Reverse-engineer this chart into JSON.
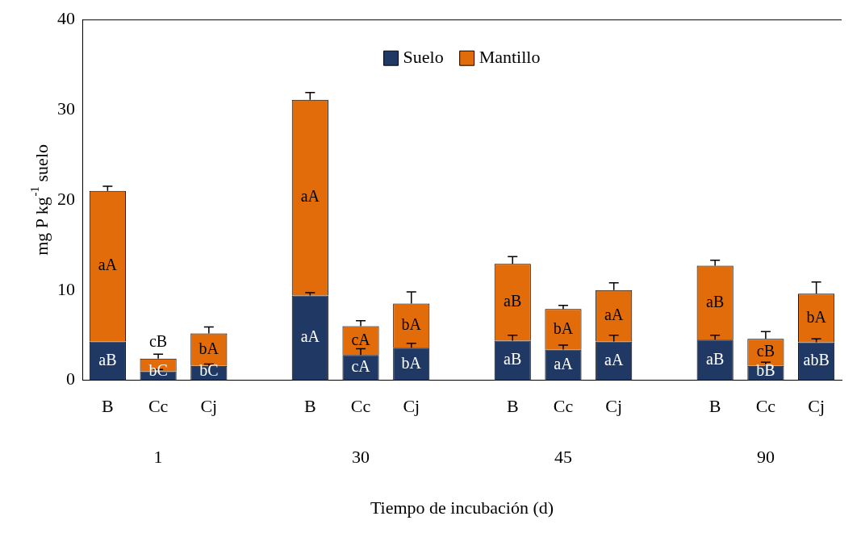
{
  "chart_data": {
    "type": "bar",
    "stacked": true,
    "xlabel": "Tiempo de incubación (d)",
    "ylabel": "mg P kg$^{-1}$ suelo",
    "categories": [
      "B",
      "Cc",
      "Cj",
      null,
      "B",
      "Cc",
      "Cj",
      null,
      "B",
      "Cc",
      "Cj",
      null,
      "B",
      "Cc",
      "Cj"
    ],
    "annotations": [
      "1",
      "30",
      "45",
      "90"
    ],
    "ylim": [
      0,
      40
    ],
    "yticks": [
      0,
      10,
      20,
      30,
      40
    ],
    "grid": false,
    "legend": "top",
    "series": [
      {
        "name": "Suelo",
        "color": "#203864",
        "values": [
          4.3,
          1.0,
          1.6,
          null,
          9.4,
          2.8,
          3.6,
          null,
          4.4,
          3.4,
          4.3,
          null,
          4.5,
          1.6,
          4.2
        ],
        "errors": [
          null,
          [
            1.0,
            1.2
          ],
          [
            1.6,
            1.8
          ],
          null,
          [
            9.4,
            9.7
          ],
          [
            2.8,
            3.5
          ],
          [
            3.6,
            4.1
          ],
          null,
          [
            4.4,
            5.0
          ],
          [
            3.4,
            3.9
          ],
          [
            4.3,
            5.0
          ],
          null,
          [
            4.5,
            5.0
          ],
          [
            1.6,
            2.0
          ],
          [
            4.2,
            4.6
          ]
        ],
        "value_labels": [
          "aB",
          "bC",
          "bC",
          null,
          "aA",
          "cA",
          "bA",
          null,
          "aB",
          "aA",
          "aA",
          null,
          "aB",
          "bB",
          "abB"
        ]
      },
      {
        "name": "Mantillo",
        "color": "#e36c0a",
        "values": [
          16.7,
          1.4,
          3.6,
          null,
          21.7,
          3.2,
          4.9,
          null,
          8.5,
          4.5,
          5.7,
          null,
          8.2,
          3.0,
          5.4
        ],
        "errors": [
          [
            21.0,
            21.5
          ],
          [
            2.4,
            2.9
          ],
          [
            5.2,
            5.9
          ],
          null,
          [
            31.1,
            31.9
          ],
          [
            6.0,
            6.6
          ],
          [
            8.5,
            9.8
          ],
          null,
          [
            12.9,
            13.7
          ],
          [
            7.9,
            8.3
          ],
          [
            10.0,
            10.8
          ],
          null,
          [
            12.7,
            13.3
          ],
          [
            4.6,
            5.4
          ],
          [
            9.6,
            10.9
          ]
        ],
        "value_labels": [
          "aA",
          "cB",
          "bA",
          null,
          "aA",
          "cA",
          "bA",
          null,
          "aB",
          "bA",
          "aA",
          null,
          "aB",
          "cB",
          "bA"
        ]
      }
    ]
  }
}
